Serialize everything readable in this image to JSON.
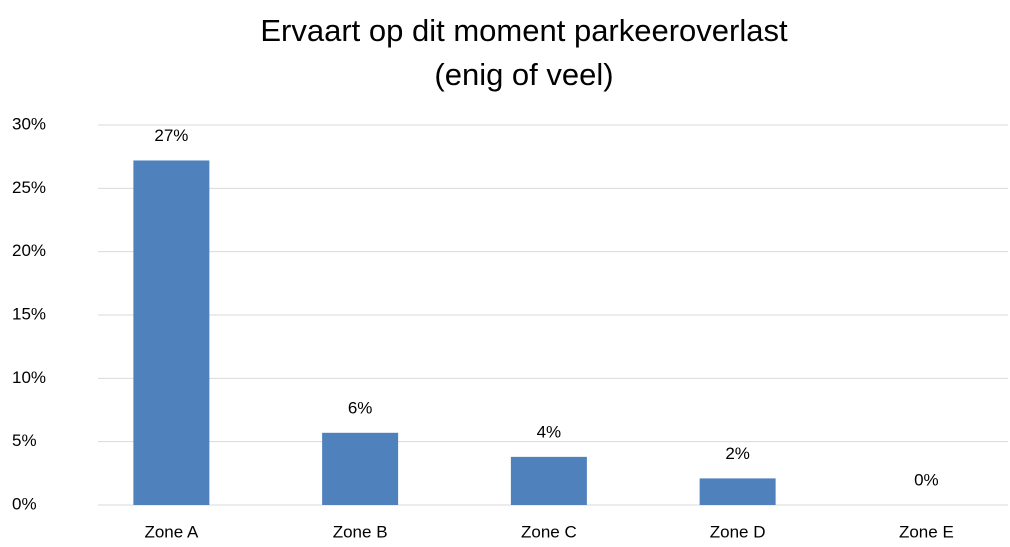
{
  "chart_data": {
    "type": "bar",
    "title": [
      "Ervaart op dit moment parkeeroverlast",
      "(enig of veel)"
    ],
    "categories": [
      "Zone A",
      "Zone B",
      "Zone C",
      "Zone D",
      "Zone E"
    ],
    "values": [
      27.2,
      5.7,
      3.8,
      2.1,
      0
    ],
    "value_labels": [
      "27%",
      "6%",
      "4%",
      "2%",
      "0%"
    ],
    "color": "#4f81bd",
    "ylim": [
      0,
      30
    ],
    "yticks": [
      {
        "value": 0,
        "label": "0%"
      },
      {
        "value": 5,
        "label": "5%"
      },
      {
        "value": 10,
        "label": "10%"
      },
      {
        "value": 15,
        "label": "15%"
      },
      {
        "value": 20,
        "label": "20%"
      },
      {
        "value": 25,
        "label": "25%"
      },
      {
        "value": 30,
        "label": "30%"
      }
    ],
    "grid": true
  }
}
